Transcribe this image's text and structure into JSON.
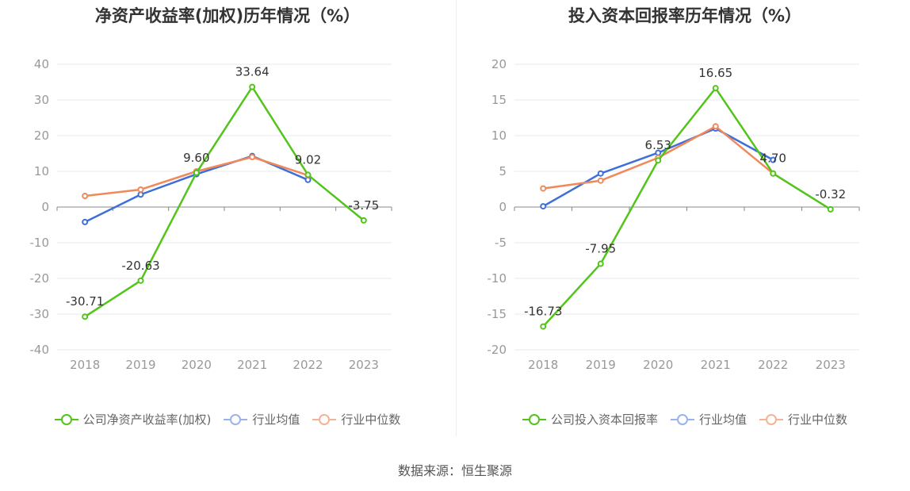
{
  "source": "数据来源：恒生聚源",
  "chart_data": [
    {
      "type": "line",
      "title": "净资产收益率(加权)历年情况（%）",
      "categories": [
        "2018",
        "2019",
        "2020",
        "2021",
        "2022",
        "2023"
      ],
      "ylim": [
        -40,
        40
      ],
      "yticks": [
        40,
        30,
        20,
        10,
        0,
        -10,
        -20,
        -30,
        -40
      ],
      "grid": true,
      "legend": "bottom",
      "series": [
        {
          "name": "公司净资产收益率(加权)",
          "color": "#52c41a",
          "values": [
            -30.71,
            -20.63,
            9.6,
            33.64,
            9.02,
            -3.75
          ],
          "labels": [
            "-30.71",
            "-20.63",
            "9.60",
            "33.64",
            "9.02",
            "-3.75"
          ]
        },
        {
          "name": "行业均值",
          "color": "#3e6fd8",
          "legend_color": "#9ab2ee",
          "values": [
            -4.2,
            3.5,
            9.2,
            14.3,
            7.6,
            null
          ]
        },
        {
          "name": "行业中位数",
          "color": "#f0885a",
          "legend_color": "#f5b396",
          "values": [
            3.1,
            4.9,
            10.0,
            14.0,
            8.9,
            null
          ]
        }
      ]
    },
    {
      "type": "line",
      "title": "投入资本回报率历年情况（%）",
      "categories": [
        "2018",
        "2019",
        "2020",
        "2021",
        "2022",
        "2023"
      ],
      "ylim": [
        -20,
        20
      ],
      "yticks": [
        20,
        15,
        10,
        5,
        0,
        -5,
        -10,
        -15,
        -20
      ],
      "grid": true,
      "legend": "bottom",
      "series": [
        {
          "name": "公司投入资本回报率",
          "color": "#52c41a",
          "values": [
            -16.73,
            -7.95,
            6.53,
            16.65,
            4.7,
            -0.32
          ],
          "labels": [
            "-16.73",
            "-7.95",
            "6.53",
            "16.65",
            "4.70",
            "-0.32"
          ]
        },
        {
          "name": "行业均值",
          "color": "#3e6fd8",
          "legend_color": "#9ab2ee",
          "values": [
            0.1,
            4.7,
            7.6,
            11.0,
            6.6,
            null
          ]
        },
        {
          "name": "行业中位数",
          "color": "#f0885a",
          "legend_color": "#f5b396",
          "values": [
            2.6,
            3.7,
            6.9,
            11.3,
            4.7,
            null
          ]
        }
      ]
    }
  ]
}
